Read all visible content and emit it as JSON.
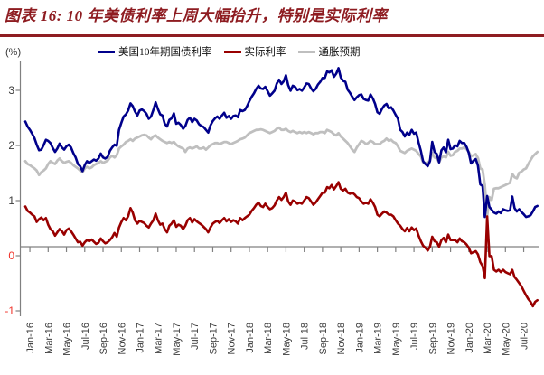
{
  "title": "图表 16: 10 年美债利率上周大幅抬升，特别是实际利率",
  "colors": {
    "title": "#8e1c21",
    "divider": "#8e1c21",
    "axis": "#808080",
    "tick_label": "#3c3c3c",
    "negative_tick_label": "#f0342b",
    "nominal_line": "#00008b",
    "real_line": "#990000",
    "breakeven_line": "#bfbfbf"
  },
  "chart_data": {
    "type": "line",
    "unit_label": "(%)",
    "legend_position": "top",
    "y_axis": {
      "ticks": [
        3,
        2,
        1,
        0,
        -1
      ],
      "ylim": [
        -1.26,
        3.36
      ],
      "grid": false
    },
    "x_axis": {
      "start_month": "2016-01",
      "end_month": "2020-08",
      "step_months": 0.25,
      "tick_labels": [
        "Jan-16",
        "Mar-16",
        "May-16",
        "Jul-16",
        "Sep-16",
        "Nov-16",
        "Jan-17",
        "Mar-17",
        "May-17",
        "Jul-17",
        "Sep-17",
        "Nov-17",
        "Jan-18",
        "Mar-18",
        "May-18",
        "Jul-18",
        "Sep-18",
        "Nov-18",
        "Jan-19",
        "Mar-19",
        "May-19",
        "Jul-19",
        "Sep-19",
        "Nov-19",
        "Jan-20",
        "Mar-20",
        "May-20",
        "Jul-20"
      ]
    },
    "series": [
      {
        "name": "美国10年期国债利率",
        "color": "#00008b",
        "values": [
          2.27,
          2.18,
          2.12,
          2.05,
          1.97,
          1.85,
          1.75,
          1.76,
          1.84,
          1.94,
          1.92,
          1.88,
          1.79,
          1.72,
          1.78,
          1.87,
          1.8,
          1.76,
          1.82,
          1.85,
          1.8,
          1.7,
          1.62,
          1.5,
          1.46,
          1.37,
          1.48,
          1.55,
          1.52,
          1.55,
          1.58,
          1.56,
          1.6,
          1.69,
          1.62,
          1.6,
          1.63,
          1.74,
          1.8,
          1.85,
          1.83,
          2.12,
          2.25,
          2.36,
          2.4,
          2.47,
          2.6,
          2.55,
          2.45,
          2.38,
          2.47,
          2.49,
          2.46,
          2.41,
          2.32,
          2.36,
          2.48,
          2.62,
          2.5,
          2.4,
          2.38,
          2.23,
          2.18,
          2.3,
          2.33,
          2.42,
          2.23,
          2.25,
          2.21,
          2.14,
          2.19,
          2.3,
          2.34,
          2.26,
          2.32,
          2.29,
          2.22,
          2.19,
          2.17,
          2.12,
          2.07,
          2.2,
          2.28,
          2.33,
          2.36,
          2.32,
          2.38,
          2.43,
          2.34,
          2.37,
          2.32,
          2.37,
          2.38,
          2.35,
          2.48,
          2.46,
          2.48,
          2.55,
          2.64,
          2.72,
          2.78,
          2.86,
          2.92,
          2.87,
          2.86,
          2.9,
          2.82,
          2.74,
          2.78,
          2.83,
          2.96,
          3.03,
          2.95,
          3.0,
          3.11,
          2.93,
          2.83,
          2.92,
          2.9,
          2.84,
          2.86,
          2.83,
          2.89,
          2.96,
          2.95,
          2.87,
          2.82,
          2.86,
          2.94,
          2.99,
          3.06,
          3.06,
          3.18,
          3.16,
          3.2,
          3.08,
          3.14,
          3.24,
          3.07,
          3.01,
          2.99,
          2.85,
          2.79,
          2.72,
          2.66,
          2.71,
          2.75,
          2.76,
          2.68,
          2.66,
          2.65,
          2.76,
          2.69,
          2.59,
          2.44,
          2.41,
          2.5,
          2.56,
          2.59,
          2.51,
          2.53,
          2.47,
          2.39,
          2.32,
          2.12,
          2.08,
          2.0,
          2.07,
          2.03,
          2.12,
          2.05,
          2.07,
          1.89,
          1.74,
          1.55,
          1.5,
          1.46,
          1.55,
          1.9,
          1.72,
          1.68,
          1.53,
          1.75,
          1.8,
          1.71,
          1.94,
          1.77,
          1.78,
          1.84,
          1.82,
          1.92,
          1.88,
          1.88,
          1.81,
          1.7,
          1.51,
          1.56,
          1.59,
          1.47,
          1.13,
          1.1,
          0.54,
          0.92,
          0.72,
          0.67,
          0.62,
          0.6,
          0.64,
          0.61,
          0.68,
          0.66,
          0.65,
          0.66,
          0.91,
          0.7,
          0.64,
          0.68,
          0.63,
          0.59,
          0.54,
          0.55,
          0.57,
          0.64,
          0.72,
          0.74
        ]
      },
      {
        "name": "实际利率",
        "color": "#990000",
        "values": [
          0.73,
          0.65,
          0.62,
          0.58,
          0.55,
          0.45,
          0.5,
          0.53,
          0.48,
          0.52,
          0.4,
          0.32,
          0.28,
          0.2,
          0.26,
          0.32,
          0.28,
          0.22,
          0.3,
          0.33,
          0.28,
          0.22,
          0.15,
          0.08,
          0.09,
          0.02,
          0.08,
          0.12,
          0.1,
          0.13,
          0.09,
          0.05,
          0.07,
          0.15,
          0.1,
          0.06,
          0.08,
          0.12,
          0.17,
          0.25,
          0.18,
          0.35,
          0.45,
          0.52,
          0.48,
          0.55,
          0.7,
          0.62,
          0.48,
          0.42,
          0.47,
          0.45,
          0.43,
          0.38,
          0.35,
          0.42,
          0.48,
          0.6,
          0.48,
          0.4,
          0.42,
          0.32,
          0.26,
          0.38,
          0.42,
          0.48,
          0.36,
          0.4,
          0.38,
          0.32,
          0.38,
          0.48,
          0.52,
          0.44,
          0.5,
          0.46,
          0.43,
          0.4,
          0.36,
          0.32,
          0.26,
          0.35,
          0.42,
          0.45,
          0.47,
          0.43,
          0.48,
          0.52,
          0.46,
          0.5,
          0.45,
          0.48,
          0.46,
          0.42,
          0.52,
          0.48,
          0.52,
          0.55,
          0.58,
          0.65,
          0.7,
          0.76,
          0.8,
          0.74,
          0.72,
          0.78,
          0.72,
          0.68,
          0.7,
          0.75,
          0.84,
          0.9,
          0.85,
          0.9,
          0.98,
          0.82,
          0.76,
          0.84,
          0.82,
          0.78,
          0.8,
          0.78,
          0.84,
          0.9,
          0.88,
          0.82,
          0.76,
          0.8,
          0.86,
          0.92,
          0.98,
          0.98,
          1.08,
          1.06,
          1.12,
          1.04,
          1.1,
          1.17,
          1.05,
          1.02,
          1.05,
          0.98,
          0.96,
          0.98,
          0.95,
          0.9,
          0.88,
          0.82,
          0.78,
          0.8,
          0.78,
          0.86,
          0.8,
          0.72,
          0.58,
          0.55,
          0.6,
          0.64,
          0.62,
          0.58,
          0.58,
          0.55,
          0.48,
          0.42,
          0.38,
          0.32,
          0.28,
          0.34,
          0.28,
          0.35,
          0.3,
          0.33,
          0.2,
          0.1,
          0.02,
          -0.02,
          -0.07,
          0.0,
          0.18,
          0.1,
          0.08,
          0.0,
          0.12,
          0.16,
          0.08,
          0.22,
          0.12,
          0.12,
          0.12,
          0.08,
          0.15,
          0.1,
          0.08,
          0.04,
          -0.02,
          -0.12,
          -0.1,
          -0.08,
          -0.14,
          -0.28,
          -0.35,
          -0.57,
          0.55,
          -0.17,
          -0.17,
          -0.42,
          -0.45,
          -0.42,
          -0.46,
          -0.42,
          -0.46,
          -0.48,
          -0.5,
          -0.42,
          -0.55,
          -0.6,
          -0.66,
          -0.72,
          -0.8,
          -0.88,
          -0.95,
          -1.0,
          -1.08,
          -1.0,
          -0.97
        ]
      },
      {
        "name": "通胀预期",
        "color": "#bfbfbf",
        "values": [
          1.55,
          1.5,
          1.48,
          1.45,
          1.42,
          1.38,
          1.3,
          1.35,
          1.38,
          1.42,
          1.5,
          1.55,
          1.52,
          1.5,
          1.56,
          1.6,
          1.55,
          1.52,
          1.54,
          1.55,
          1.52,
          1.48,
          1.45,
          1.42,
          1.38,
          1.35,
          1.42,
          1.45,
          1.42,
          1.44,
          1.48,
          1.5,
          1.52,
          1.55,
          1.52,
          1.54,
          1.56,
          1.62,
          1.65,
          1.62,
          1.66,
          1.78,
          1.82,
          1.85,
          1.9,
          1.92,
          1.95,
          1.92,
          1.96,
          1.98,
          2.0,
          2.02,
          2.03,
          2.02,
          1.98,
          1.95,
          2.0,
          2.02,
          1.98,
          1.95,
          1.92,
          1.9,
          1.88,
          1.9,
          1.88,
          1.9,
          1.85,
          1.82,
          1.8,
          1.78,
          1.72,
          1.78,
          1.8,
          1.78,
          1.8,
          1.82,
          1.78,
          1.78,
          1.8,
          1.76,
          1.8,
          1.84,
          1.86,
          1.88,
          1.88,
          1.86,
          1.88,
          1.9,
          1.9,
          1.88,
          1.86,
          1.88,
          1.9,
          1.92,
          1.95,
          1.96,
          1.98,
          2.02,
          2.06,
          2.08,
          2.1,
          2.12,
          2.12,
          2.13,
          2.12,
          2.1,
          2.08,
          2.06,
          2.08,
          2.1,
          2.14,
          2.16,
          2.12,
          2.12,
          2.14,
          2.1,
          2.08,
          2.1,
          2.08,
          2.06,
          2.08,
          2.06,
          2.08,
          2.06,
          2.08,
          2.06,
          2.04,
          2.06,
          2.06,
          2.08,
          2.08,
          2.06,
          2.12,
          2.1,
          2.08,
          2.04,
          2.02,
          2.06,
          2.0,
          1.96,
          1.92,
          1.88,
          1.82,
          1.76,
          1.72,
          1.8,
          1.86,
          1.92,
          1.9,
          1.86,
          1.88,
          1.92,
          1.9,
          1.86,
          1.86,
          1.86,
          1.9,
          1.92,
          1.96,
          1.92,
          1.94,
          1.9,
          1.88,
          1.82,
          1.74,
          1.72,
          1.7,
          1.74,
          1.76,
          1.78,
          1.76,
          1.74,
          1.68,
          1.64,
          1.53,
          1.52,
          1.52,
          1.56,
          1.7,
          1.62,
          1.6,
          1.53,
          1.62,
          1.64,
          1.62,
          1.72,
          1.65,
          1.66,
          1.72,
          1.74,
          1.78,
          1.78,
          1.8,
          1.77,
          1.72,
          1.64,
          1.66,
          1.68,
          1.61,
          1.42,
          1.4,
          1.12,
          0.55,
          0.9,
          0.85,
          1.05,
          1.06,
          1.06,
          1.08,
          1.1,
          1.12,
          1.14,
          1.16,
          1.32,
          1.26,
          1.24,
          1.34,
          1.36,
          1.4,
          1.42,
          1.5,
          1.57,
          1.64,
          1.68,
          1.72
        ]
      }
    ]
  }
}
